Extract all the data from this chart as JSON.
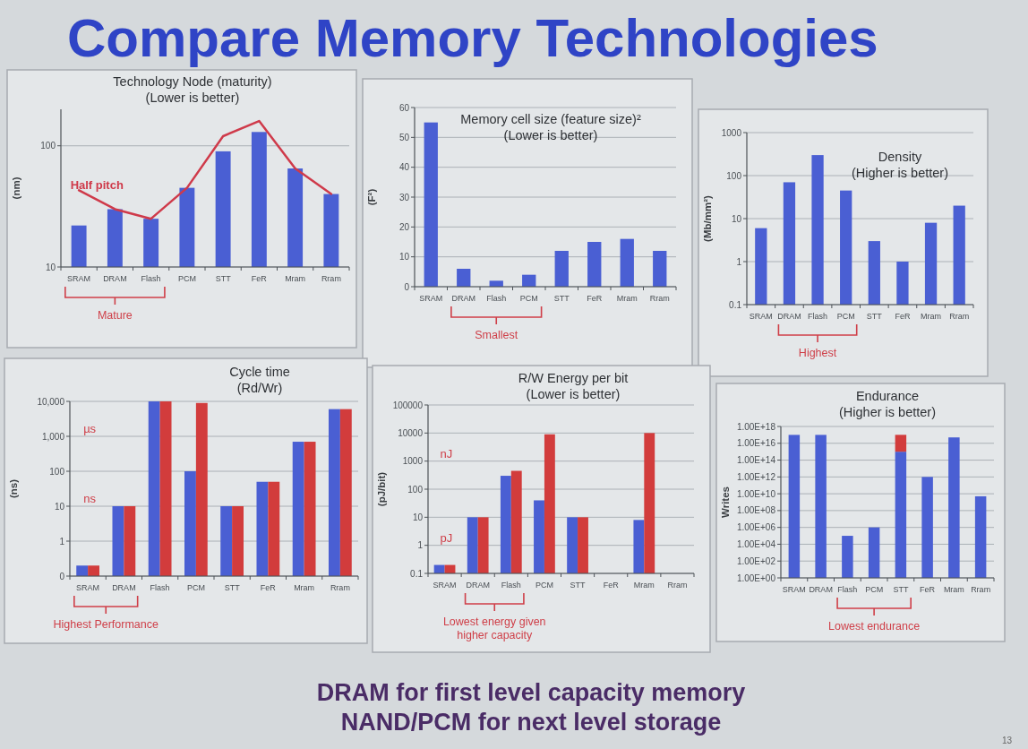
{
  "chart_data": [
    {
      "type": "other",
      "title": "Compare Memory Technologies"
    },
    {
      "type": "bar",
      "title": "Technology Node (maturity)",
      "subtitle": "(Lower is better)",
      "ylabel": "(nm)",
      "categories": [
        "SRAM",
        "DRAM",
        "Flash",
        "PCM",
        "STT",
        "FeR",
        "Mram",
        "Rram"
      ],
      "series": [
        {
          "color": "#4a5fd3",
          "values": [
            22,
            30,
            25,
            45,
            90,
            130,
            65,
            40
          ]
        },
        {
          "type": "line",
          "name": "Half pitch",
          "color": "#cf3a4a",
          "values": [
            43,
            30,
            25,
            45,
            120,
            160,
            65,
            40
          ]
        }
      ],
      "log": true,
      "ylim": [
        10,
        200
      ],
      "yticks": [
        10,
        100
      ],
      "grid": "y",
      "annotations": [
        "Mature"
      ]
    },
    {
      "type": "bar",
      "title": "Memory cell size (feature size)²",
      "subtitle": "(Lower is better)",
      "ylabel": "(F²)",
      "categories": [
        "SRAM",
        "DRAM",
        "Flash",
        "PCM",
        "STT",
        "FeR",
        "Mram",
        "Rram"
      ],
      "values": [
        55,
        6,
        2,
        4,
        12,
        15,
        16,
        12
      ],
      "color": "#4a5fd3",
      "ylim": [
        0,
        60
      ],
      "yticks": [
        0,
        10,
        20,
        30,
        40,
        50,
        60
      ],
      "grid": "y",
      "annotations": [
        "Smallest"
      ]
    },
    {
      "type": "bar",
      "title": "Density",
      "subtitle": "(Higher is better)",
      "ylabel": "(Mb/mm²)",
      "categories": [
        "SRAM",
        "DRAM",
        "Flash",
        "PCM",
        "STT",
        "FeR",
        "Mram",
        "Rram"
      ],
      "values": [
        6,
        70,
        300,
        45,
        3,
        1,
        8,
        20
      ],
      "color": "#4a5fd3",
      "log": true,
      "ylim": [
        0.1,
        1000
      ],
      "yticks": [
        0.1,
        1,
        10,
        100,
        1000
      ],
      "grid": "y",
      "annotations": [
        "Highest"
      ]
    },
    {
      "type": "bar",
      "title": "Cycle time",
      "subtitle": "(Rd/Wr)",
      "ylabel": "(ns)",
      "categories": [
        "SRAM",
        "DRAM",
        "Flash",
        "PCM",
        "STT",
        "FeR",
        "Mram",
        "Rram"
      ],
      "series": [
        {
          "color": "#4a5fd3",
          "values": [
            0.2,
            10,
            10000,
            100,
            10,
            50,
            700,
            6000
          ]
        },
        {
          "color": "#d23c3c",
          "values": [
            0.2,
            10,
            10000,
            9000,
            10,
            50,
            700,
            6000
          ]
        }
      ],
      "log": true,
      "ylim": [
        0.1,
        10000
      ],
      "yticks": [
        {
          "value": 0.1,
          "label": "0"
        },
        1,
        10,
        100,
        {
          "value": 1000,
          "label": "1,000"
        },
        {
          "value": 10000,
          "label": "10,000"
        }
      ],
      "grid": "y",
      "annotations": [
        "µs",
        "ns",
        "Highest Performance"
      ]
    },
    {
      "type": "bar",
      "title": "R/W Energy per bit",
      "subtitle": "(Lower is better)",
      "ylabel": "(pJ/bit)",
      "categories": [
        "SRAM",
        "DRAM",
        "Flash",
        "PCM",
        "STT",
        "FeR",
        "Mram",
        "Rram"
      ],
      "series": [
        {
          "color": "#4a5fd3",
          "values": [
            0.2,
            10,
            300,
            40,
            10,
            null,
            8,
            null
          ]
        },
        {
          "color": "#d23c3c",
          "values": [
            0.2,
            10,
            450,
            9000,
            10,
            null,
            10000,
            null
          ]
        }
      ],
      "log": true,
      "ylim": [
        0.1,
        100000
      ],
      "yticks": [
        0.1,
        1,
        10,
        100,
        1000,
        10000,
        100000
      ],
      "grid": "y",
      "annotations": [
        "nJ",
        "pJ",
        "Lowest energy given higher capacity"
      ]
    },
    {
      "type": "bar",
      "stacked": true,
      "title": "Endurance",
      "subtitle": "(Higher is better)",
      "ylabel": "Writes",
      "categories": [
        "SRAM",
        "DRAM",
        "Flash",
        "PCM",
        "STT",
        "FeR",
        "Mram",
        "Rram"
      ],
      "series": [
        {
          "color": "#4a5fd3",
          "values": [
            1e+17,
            1e+17,
            100000.0,
            1000000.0,
            1000000000000000.0,
            1000000000000.0,
            5e+16,
            5000000000.0
          ]
        },
        {
          "color": "#d23c3c",
          "values": [
            null,
            null,
            null,
            null,
            1e+17,
            null,
            null,
            null
          ]
        }
      ],
      "log": true,
      "ylim": [
        1,
        1e+18
      ],
      "yticks": [
        {
          "value": 1,
          "label": "1.00E+00"
        },
        {
          "value": 100.0,
          "label": "1.00E+02"
        },
        {
          "value": 10000.0,
          "label": "1.00E+04"
        },
        {
          "value": 1000000.0,
          "label": "1.00E+06"
        },
        {
          "value": 100000000.0,
          "label": "1.00E+08"
        },
        {
          "value": 10000000000.0,
          "label": "1.00E+10"
        },
        {
          "value": 1000000000000.0,
          "label": "1.00E+12"
        },
        {
          "value": 100000000000000.0,
          "label": "1.00E+14"
        },
        {
          "value": 1e+16,
          "label": "1.00E+16"
        },
        {
          "value": 1e+18,
          "label": "1.00E+18"
        }
      ],
      "grid": "y",
      "annotations": [
        "Lowest endurance"
      ]
    },
    {
      "type": "other",
      "annotations": [
        "DRAM for first level capacity memory",
        "NAND/PCM for next level storage",
        "13"
      ]
    }
  ]
}
